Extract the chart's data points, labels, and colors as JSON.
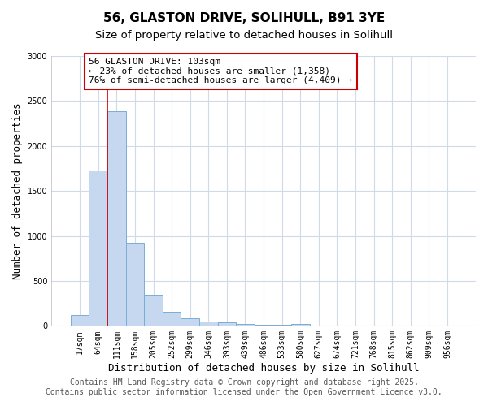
{
  "title_line1": "56, GLASTON DRIVE, SOLIHULL, B91 3YE",
  "title_line2": "Size of property relative to detached houses in Solihull",
  "xlabel": "Distribution of detached houses by size in Solihull",
  "ylabel": "Number of detached properties",
  "categories": [
    "17sqm",
    "64sqm",
    "111sqm",
    "158sqm",
    "205sqm",
    "252sqm",
    "299sqm",
    "346sqm",
    "393sqm",
    "439sqm",
    "486sqm",
    "533sqm",
    "580sqm",
    "627sqm",
    "674sqm",
    "721sqm",
    "768sqm",
    "815sqm",
    "862sqm",
    "909sqm",
    "956sqm"
  ],
  "values": [
    120,
    1730,
    2390,
    920,
    350,
    155,
    85,
    50,
    38,
    20,
    12,
    8,
    25,
    0,
    0,
    0,
    0,
    0,
    0,
    0,
    0
  ],
  "bar_color": "#c5d8f0",
  "bar_edge_color": "#7aadd4",
  "grid_color": "#d0dae8",
  "background_color": "#ffffff",
  "vline_color": "#cc0000",
  "vline_position": 1.5,
  "annotation_text": "56 GLASTON DRIVE: 103sqm\n← 23% of detached houses are smaller (1,358)\n76% of semi-detached houses are larger (4,409) →",
  "annotation_box_facecolor": "#ffffff",
  "annotation_box_edgecolor": "#cc0000",
  "ylim": [
    0,
    3000
  ],
  "yticks": [
    0,
    500,
    1000,
    1500,
    2000,
    2500,
    3000
  ],
  "footer_line1": "Contains HM Land Registry data © Crown copyright and database right 2025.",
  "footer_line2": "Contains public sector information licensed under the Open Government Licence v3.0.",
  "title_fontsize": 11,
  "subtitle_fontsize": 9.5,
  "axis_label_fontsize": 9,
  "tick_fontsize": 7,
  "annotation_fontsize": 8,
  "footer_fontsize": 7
}
